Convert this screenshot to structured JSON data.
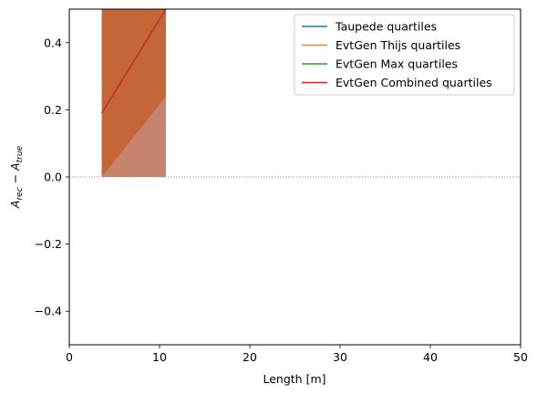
{
  "chart_data": {
    "type": "line",
    "title": "",
    "xlabel": "Length [m]",
    "ylabel_main": "A",
    "ylabel_sub1": "rec",
    "ylabel_minus": " − ",
    "ylabel_sub2": "true",
    "xlim": [
      0,
      50
    ],
    "ylim": [
      -0.5,
      0.5
    ],
    "x_ticks": [
      0,
      10,
      20,
      30,
      40,
      50
    ],
    "x_tick_labels": [
      "0",
      "10",
      "20",
      "30",
      "40",
      "50"
    ],
    "y_ticks": [
      -0.4,
      -0.2,
      0.0,
      0.2,
      0.4
    ],
    "y_tick_labels": [
      "−0.4",
      "−0.2",
      "0.0",
      "0.2",
      "0.4"
    ],
    "grid": false,
    "legend_position": "top-right",
    "reference_line": {
      "y": 0.0,
      "style": "dotted",
      "color": "#888888"
    },
    "series": [
      {
        "name": "Taupede quartiles",
        "color": "#1f77b4",
        "x": [
          3.6,
          10.7
        ],
        "y": [
          0.19,
          0.5
        ]
      },
      {
        "name": "EvtGen Thijs quartiles",
        "color": "#ff7f0e",
        "x": [
          3.6,
          10.7
        ],
        "y": [
          0.19,
          0.5
        ]
      },
      {
        "name": "EvtGen Max quartiles",
        "color": "#2ca02c",
        "x": [
          3.6,
          10.7
        ],
        "y": [
          0.19,
          0.5
        ]
      },
      {
        "name": "EvtGen Combined quartiles",
        "color": "#d62728",
        "x": [
          3.6,
          10.7
        ],
        "y": [
          0.19,
          0.5
        ]
      }
    ],
    "bands": [
      {
        "color": "#b9735f",
        "x": [
          3.6,
          10.7
        ],
        "lower": [
          0.0,
          0.0
        ],
        "upper": [
          0.5,
          0.5
        ]
      },
      {
        "color": "#c7826b",
        "x": [
          3.6,
          10.7
        ],
        "lower": [
          0.0,
          0.0
        ],
        "upper": [
          0.5,
          0.5
        ]
      },
      {
        "color": "#c4612f",
        "x": [
          3.6,
          10.7
        ],
        "lower": [
          0.0,
          0.24
        ],
        "upper": [
          0.5,
          0.5
        ]
      }
    ]
  }
}
